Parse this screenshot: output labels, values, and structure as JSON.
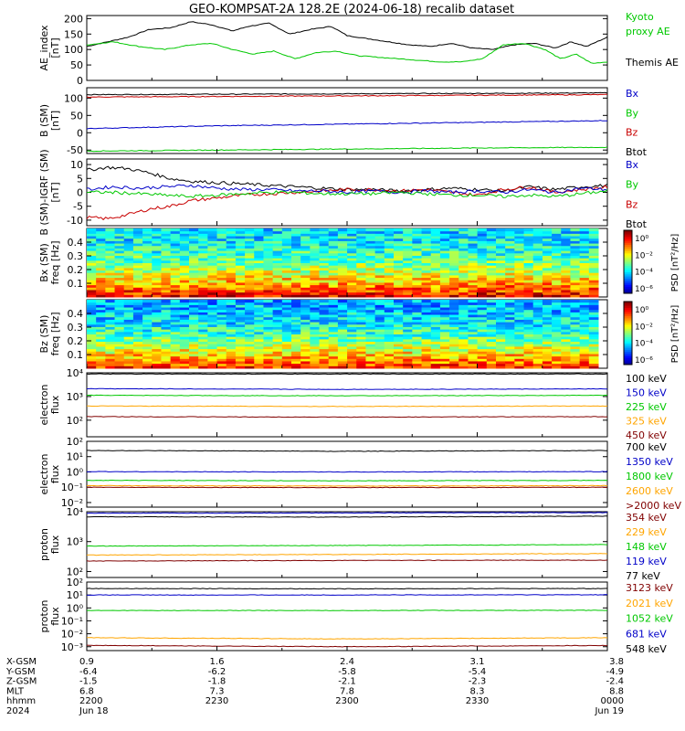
{
  "chart_data": {
    "type": "line",
    "title": "GEO-KOMPSAT-2A 128.2E (2024-06-18) recalib dataset",
    "x_range_time": [
      "2200",
      "0000"
    ],
    "panels": [
      {
        "id": "ae",
        "ylabel": "AE_index\n[nT]",
        "scale": "linear",
        "ylim": [
          0,
          210
        ],
        "yticks": [
          0,
          50,
          100,
          150,
          200
        ],
        "ytick_labels": [
          "0",
          "50",
          "100",
          "150",
          "200"
        ],
        "legend": [
          {
            "name": "Kyoto",
            "color": "#00c800"
          },
          {
            "name": "proxy AE",
            "color": "#00c800"
          },
          {
            "name": "Themis AE",
            "color": "#000000"
          }
        ],
        "series": [
          {
            "color": "#000000",
            "x": [
              0,
              0.04,
              0.08,
              0.12,
              0.16,
              0.2,
              0.24,
              0.28,
              0.31,
              0.35,
              0.39,
              0.43,
              0.47,
              0.5,
              0.54,
              0.58,
              0.62,
              0.66,
              0.7,
              0.74,
              0.78,
              0.82,
              0.86,
              0.9,
              0.93,
              0.96,
              1.0
            ],
            "y": [
              110,
              125,
              140,
              165,
              170,
              190,
              180,
              160,
              175,
              185,
              150,
              165,
              175,
              145,
              135,
              125,
              115,
              110,
              120,
              105,
              100,
              115,
              120,
              105,
              125,
              110,
              140
            ]
          },
          {
            "color": "#00c800",
            "x": [
              0,
              0.05,
              0.1,
              0.15,
              0.2,
              0.24,
              0.28,
              0.32,
              0.36,
              0.4,
              0.44,
              0.48,
              0.52,
              0.56,
              0.6,
              0.64,
              0.68,
              0.72,
              0.76,
              0.8,
              0.84,
              0.88,
              0.91,
              0.94,
              0.97,
              1.0
            ],
            "y": [
              115,
              125,
              110,
              100,
              115,
              120,
              100,
              85,
              95,
              70,
              90,
              95,
              80,
              75,
              70,
              65,
              60,
              60,
              70,
              115,
              120,
              100,
              70,
              85,
              55,
              60
            ]
          }
        ]
      },
      {
        "id": "b",
        "ylabel": "B (SM)\n[nT]",
        "scale": "linear",
        "ylim": [
          -60,
          130
        ],
        "yticks": [
          -50,
          0,
          50,
          100
        ],
        "ytick_labels": [
          "-50",
          "0",
          "50",
          "100"
        ],
        "legend": [
          {
            "name": "Bx",
            "color": "#0000c8"
          },
          {
            "name": "By",
            "color": "#00c800"
          },
          {
            "name": "Bz",
            "color": "#c80000"
          },
          {
            "name": "Btot",
            "color": "#000000"
          }
        ],
        "series": [
          {
            "color": "#000000",
            "x": [
              0,
              1
            ],
            "y": [
              110,
              115
            ]
          },
          {
            "color": "#c80000",
            "x": [
              0,
              1
            ],
            "y": [
              103,
              110
            ]
          },
          {
            "color": "#0000c8",
            "x": [
              0,
              0.25,
              0.5,
              0.75,
              1
            ],
            "y": [
              12,
              20,
              25,
              30,
              35
            ]
          },
          {
            "color": "#00c800",
            "x": [
              0,
              0.25,
              0.5,
              0.75,
              1
            ],
            "y": [
              -53,
              -50,
              -47,
              -44,
              -42
            ]
          }
        ]
      },
      {
        "id": "dbx",
        "ylabel": "B (SM)-IGRF (SM)\n[nT]",
        "scale": "linear",
        "ylim": [
          -12,
          12
        ],
        "yticks": [
          -10,
          -5,
          0,
          5,
          10
        ],
        "ytick_labels": [
          "-10",
          "-5",
          "0",
          "5",
          "10"
        ],
        "legend": [
          {
            "name": "Bx",
            "color": "#0000c8"
          },
          {
            "name": "By",
            "color": "#00c800"
          },
          {
            "name": "Bz",
            "color": "#c80000"
          },
          {
            "name": "Btot",
            "color": "#000000"
          }
        ],
        "series": [
          {
            "color": "#000000",
            "x": [
              0,
              0.04,
              0.08,
              0.12,
              0.16,
              0.2,
              0.25,
              0.3,
              0.35,
              0.4,
              0.45,
              0.5,
              0.55,
              0.6,
              0.65,
              0.7,
              0.75,
              0.8,
              0.85,
              0.9,
              0.95,
              1.0
            ],
            "y": [
              8,
              9,
              8.5,
              7,
              5,
              4,
              3.5,
              3,
              2.5,
              2,
              1.5,
              1,
              1,
              0.5,
              1,
              1.5,
              1,
              0.5,
              2,
              1,
              2,
              2.5
            ]
          },
          {
            "color": "#c80000",
            "x": [
              0,
              0.04,
              0.08,
              0.12,
              0.16,
              0.2,
              0.25,
              0.3,
              0.35,
              0.4,
              0.45,
              0.5,
              0.55,
              0.6,
              0.65,
              0.7,
              0.75,
              0.8,
              0.85,
              0.9,
              0.95,
              1.0
            ],
            "y": [
              -9,
              -9.5,
              -8,
              -6,
              -5,
              -3,
              -2,
              -1,
              -0.5,
              0,
              0.5,
              1,
              1,
              0.5,
              1,
              0,
              -1,
              1,
              2,
              0,
              1,
              2
            ]
          },
          {
            "color": "#0000c8",
            "x": [
              0,
              0.05,
              0.1,
              0.15,
              0.2,
              0.25,
              0.3,
              0.35,
              0.4,
              0.45,
              0.5,
              0.55,
              0.6,
              0.65,
              0.7,
              0.75,
              0.8,
              0.85,
              0.9,
              0.95,
              1.0
            ],
            "y": [
              1,
              2,
              1.5,
              2,
              2.5,
              1.5,
              1,
              1,
              0.5,
              0.5,
              0,
              0.5,
              0,
              0.5,
              0,
              0.5,
              0,
              1,
              0,
              1.5,
              1
            ]
          },
          {
            "color": "#00c800",
            "x": [
              0,
              0.05,
              0.1,
              0.15,
              0.2,
              0.25,
              0.3,
              0.35,
              0.4,
              0.45,
              0.5,
              0.55,
              0.6,
              0.65,
              0.7,
              0.75,
              0.8,
              0.85,
              0.9,
              0.95,
              1.0
            ],
            "y": [
              0,
              0,
              -0.5,
              -1,
              -1.5,
              -1,
              -0.5,
              0,
              0,
              -0.5,
              -0.5,
              -0.5,
              0,
              -0.5,
              -1,
              -1,
              -1.5,
              -1,
              -1.5,
              -0.5,
              0.5
            ]
          }
        ]
      },
      {
        "id": "bx_spec",
        "ylabel": "Bx (SM)\nfreq [Hz]",
        "scale": "spectrogram",
        "ylim": [
          0,
          0.5
        ],
        "yticks": [
          0.1,
          0.2,
          0.3,
          0.4
        ],
        "ytick_labels": [
          "0.1",
          "0.2",
          "0.3",
          "0.4"
        ],
        "colorbar_label": "PSD [nT²/Hz]",
        "colorbar_ticks": [
          "10⁰",
          "10⁻²",
          "10⁻⁴",
          "10⁻⁶"
        ]
      },
      {
        "id": "bz_spec",
        "ylabel": "Bz (SM)\nfreq [Hz]",
        "scale": "spectrogram",
        "ylim": [
          0,
          0.5
        ],
        "yticks": [
          0.1,
          0.2,
          0.3,
          0.4
        ],
        "ytick_labels": [
          "0.1",
          "0.2",
          "0.3",
          "0.4"
        ],
        "colorbar_label": "PSD [nT²/Hz]",
        "colorbar_ticks": [
          "10⁰",
          "10⁻²",
          "10⁻⁴",
          "10⁻⁶"
        ]
      },
      {
        "id": "e_flux_low",
        "ylabel": "electron\nflux",
        "scale": "log",
        "ylim": [
          1.3,
          4
        ],
        "yticks": [
          2,
          3,
          4
        ],
        "ytick_labels": [
          "10²",
          "10³",
          "10⁴"
        ],
        "legend": [
          {
            "name": "100 keV",
            "color": "#000000"
          },
          {
            "name": "150 keV",
            "color": "#0000c8"
          },
          {
            "name": "225 keV",
            "color": "#00c800"
          },
          {
            "name": "325 keV",
            "color": "#ffa500"
          },
          {
            "name": "450 keV",
            "color": "#800000"
          }
        ],
        "series": [
          {
            "color": "#000000",
            "x": [
              0,
              1
            ],
            "y": [
              3.95,
              3.95
            ]
          },
          {
            "color": "#0000c8",
            "x": [
              0,
              0.5,
              1
            ],
            "y": [
              3.33,
              3.3,
              3.32
            ]
          },
          {
            "color": "#00c800",
            "x": [
              0,
              0.5,
              1
            ],
            "y": [
              3.05,
              3.03,
              3.05
            ]
          },
          {
            "color": "#ffa500",
            "x": [
              0,
              0.5,
              1
            ],
            "y": [
              2.6,
              2.58,
              2.6
            ]
          },
          {
            "color": "#800000",
            "x": [
              0,
              0.5,
              1
            ],
            "y": [
              2.15,
              2.13,
              2.15
            ]
          }
        ]
      },
      {
        "id": "e_flux_high",
        "ylabel": "electron\nflux",
        "scale": "log",
        "ylim": [
          -2.3,
          2
        ],
        "yticks": [
          -2,
          -1,
          0,
          1,
          2
        ],
        "ytick_labels": [
          "10⁻²",
          "10⁻¹",
          "10⁰",
          "10¹",
          "10²"
        ],
        "legend": [
          {
            "name": "700 keV",
            "color": "#000000"
          },
          {
            "name": "1350 keV",
            "color": "#0000c8"
          },
          {
            "name": "1800 keV",
            "color": "#00c800"
          },
          {
            "name": "2600 keV",
            "color": "#ffa500"
          },
          {
            "name": ">2000 keV",
            "color": "#800000"
          }
        ],
        "series": [
          {
            "color": "#000000",
            "x": [
              0,
              0.5,
              1
            ],
            "y": [
              1.4,
              1.35,
              1.4
            ]
          },
          {
            "color": "#0000c8",
            "x": [
              0,
              0.5,
              1
            ],
            "y": [
              0.02,
              0.0,
              0.02
            ]
          },
          {
            "color": "#00c800",
            "x": [
              0,
              0.5,
              1
            ],
            "y": [
              -0.55,
              -0.58,
              -0.55
            ]
          },
          {
            "color": "#ffa500",
            "x": [
              0,
              0.5,
              1
            ],
            "y": [
              -0.9,
              -0.92,
              -0.9
            ]
          },
          {
            "color": "#800000",
            "x": [
              0,
              0.5,
              1
            ],
            "y": [
              -1.0,
              -1.02,
              -1.0
            ]
          }
        ]
      },
      {
        "id": "p_flux_low",
        "ylabel": "proton\nflux",
        "scale": "log",
        "ylim": [
          1.8,
          4
        ],
        "yticks": [
          2,
          3,
          4
        ],
        "ytick_labels": [
          "10²",
          "10³",
          "10⁴"
        ],
        "legend": [
          {
            "name": "354 keV",
            "color": "#800000"
          },
          {
            "name": "229 keV",
            "color": "#ffa500"
          },
          {
            "name": "148 keV",
            "color": "#00c800"
          },
          {
            "name": "119 keV",
            "color": "#0000c8"
          },
          {
            "name": "77 keV",
            "color": "#000000"
          }
        ],
        "series": [
          {
            "color": "#0000c8",
            "x": [
              0,
              1
            ],
            "y": [
              3.95,
              3.97
            ]
          },
          {
            "color": "#000000",
            "x": [
              0,
              0.5,
              1
            ],
            "y": [
              3.83,
              3.82,
              3.85
            ]
          },
          {
            "color": "#00c800",
            "x": [
              0,
              0.5,
              1
            ],
            "y": [
              2.85,
              2.87,
              2.9
            ]
          },
          {
            "color": "#ffa500",
            "x": [
              0,
              0.5,
              1
            ],
            "y": [
              2.55,
              2.57,
              2.6
            ]
          },
          {
            "color": "#800000",
            "x": [
              0,
              0.5,
              1
            ],
            "y": [
              2.35,
              2.37,
              2.38
            ]
          }
        ]
      },
      {
        "id": "p_flux_high",
        "ylabel": "proton\nflux",
        "scale": "log",
        "ylim": [
          -3.3,
          2
        ],
        "yticks": [
          -3,
          -2,
          -1,
          0,
          1,
          2
        ],
        "ytick_labels": [
          "10⁻³",
          "10⁻²",
          "10⁻¹",
          "10⁰",
          "10¹",
          "10²"
        ],
        "legend": [
          {
            "name": "3123 keV",
            "color": "#800000"
          },
          {
            "name": "2021 keV",
            "color": "#ffa500"
          },
          {
            "name": "1052 keV",
            "color": "#00c800"
          },
          {
            "name": "681 keV",
            "color": "#0000c8"
          },
          {
            "name": "548 keV",
            "color": "#000000"
          }
        ],
        "series": [
          {
            "color": "#000000",
            "x": [
              0,
              0.5,
              1
            ],
            "y": [
              1.5,
              1.48,
              1.5
            ]
          },
          {
            "color": "#0000c8",
            "x": [
              0,
              0.5,
              1
            ],
            "y": [
              1.0,
              1.0,
              1.02
            ]
          },
          {
            "color": "#00c800",
            "x": [
              0,
              0.5,
              1
            ],
            "y": [
              -0.2,
              -0.2,
              -0.18
            ]
          },
          {
            "color": "#ffa500",
            "x": [
              0,
              0.5,
              1
            ],
            "y": [
              -2.3,
              -2.4,
              -2.3
            ]
          },
          {
            "color": "#800000",
            "x": [
              0,
              0.5,
              1
            ],
            "y": [
              -2.9,
              -3.0,
              -2.9
            ]
          }
        ]
      }
    ],
    "ephemeris": {
      "row_labels": [
        "X-GSM",
        "Y-GSM",
        "Z-GSM",
        "MLT",
        "hhmm",
        "2024"
      ],
      "columns": [
        {
          "x": 0.0,
          "values": [
            "0.9",
            "-6.4",
            "-1.5",
            "6.8",
            "2200",
            "Jun 18"
          ]
        },
        {
          "x": 0.25,
          "values": [
            "1.6",
            "-6.2",
            "-1.8",
            "7.3",
            "2230",
            ""
          ]
        },
        {
          "x": 0.5,
          "values": [
            "2.4",
            "-5.8",
            "-2.1",
            "7.8",
            "2300",
            ""
          ]
        },
        {
          "x": 0.75,
          "values": [
            "3.1",
            "-5.4",
            "-2.3",
            "8.3",
            "2330",
            ""
          ]
        },
        {
          "x": 1.0,
          "values": [
            "3.8",
            "-4.9",
            "-2.4",
            "8.8",
            "0000",
            "Jun 19"
          ]
        }
      ]
    }
  }
}
